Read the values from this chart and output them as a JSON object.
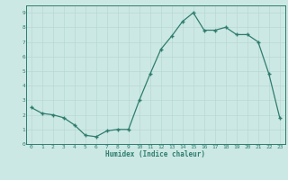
{
  "x": [
    0,
    1,
    2,
    3,
    4,
    5,
    6,
    7,
    8,
    9,
    10,
    11,
    12,
    13,
    14,
    15,
    16,
    17,
    18,
    19,
    20,
    21,
    22,
    23
  ],
  "y": [
    2.5,
    2.1,
    2.0,
    1.8,
    1.3,
    0.6,
    0.5,
    0.9,
    1.0,
    1.0,
    3.0,
    4.8,
    6.5,
    7.4,
    8.4,
    9.0,
    7.8,
    7.8,
    8.0,
    7.5,
    7.5,
    7.0,
    4.8,
    1.8
  ],
  "xlabel": "Humidex (Indice chaleur)",
  "xlim": [
    -0.5,
    23.5
  ],
  "ylim": [
    0,
    9.5
  ],
  "line_color": "#2e7d6e",
  "bg_color": "#cce8e4",
  "grid_color": "#b8d8d4",
  "tick_color": "#2e7d6e",
  "label_color": "#2e7d6e",
  "xticks": [
    0,
    1,
    2,
    3,
    4,
    5,
    6,
    7,
    8,
    9,
    10,
    11,
    12,
    13,
    14,
    15,
    16,
    17,
    18,
    19,
    20,
    21,
    22,
    23
  ],
  "yticks": [
    0,
    1,
    2,
    3,
    4,
    5,
    6,
    7,
    8,
    9
  ]
}
